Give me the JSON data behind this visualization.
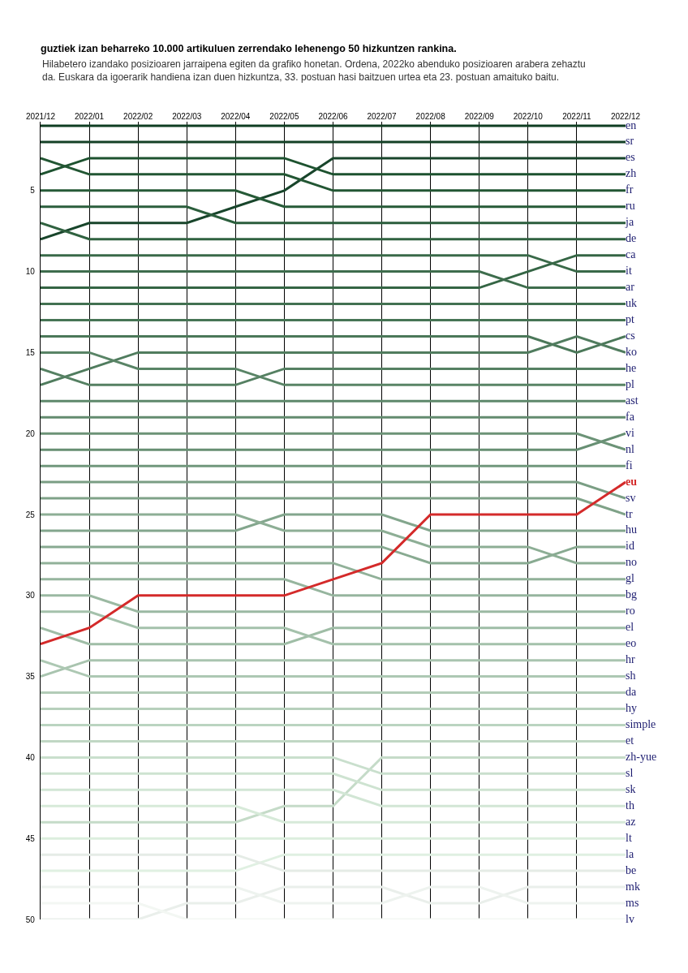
{
  "chart_data": {
    "type": "line",
    "title": "guztiek izan beharreko 10.000 artikuluen zerrendako lehenengo 50 hizkuntzen rankina.",
    "subtitle": "Hilabetero izandako posizioaren jarraipena egiten da grafiko honetan. Ordena, 2022ko abenduko posizioaren arabera zehaztu da. Euskara da igoerarik handiena izan duen hizkuntza, 33. postuan hasi baitzuen urtea eta 23. postuan amaituko baitu.",
    "categories": [
      "2021/12",
      "2022/01",
      "2022/02",
      "2022/03",
      "2022/04",
      "2022/05",
      "2022/06",
      "2022/07",
      "2022/08",
      "2022/09",
      "2022/10",
      "2022/11",
      "2022/12"
    ],
    "ylim": [
      50,
      0.75
    ],
    "yticks": [
      5,
      10,
      15,
      20,
      25,
      30,
      35,
      40,
      45,
      50
    ],
    "grid": "x",
    "legend": false,
    "line_style": "solid",
    "series": [
      {
        "name": "en",
        "color": "#0f3d22",
        "values": [
          1,
          1,
          1,
          1,
          1,
          1,
          1,
          1,
          1,
          1,
          1,
          1,
          1
        ]
      },
      {
        "name": "sr",
        "color": "#144126",
        "values": [
          2,
          2,
          2,
          2,
          2,
          2,
          2,
          2,
          2,
          2,
          2,
          2,
          2
        ]
      },
      {
        "name": "es",
        "color": "#18452b",
        "values": [
          8,
          7,
          7,
          7,
          6,
          5,
          3,
          3,
          3,
          3,
          3,
          3,
          3
        ]
      },
      {
        "name": "zh",
        "color": "#1d522f",
        "values": [
          4,
          3,
          3,
          3,
          3,
          3,
          4,
          4,
          4,
          4,
          4,
          4,
          4
        ]
      },
      {
        "name": "fr",
        "color": "#225633",
        "values": [
          3,
          4,
          4,
          4,
          4,
          4,
          5,
          5,
          5,
          5,
          5,
          5,
          5
        ]
      },
      {
        "name": "ru",
        "color": "#265a37",
        "values": [
          5,
          5,
          5,
          5,
          5,
          6,
          6,
          6,
          6,
          6,
          6,
          6,
          6
        ]
      },
      {
        "name": "ja",
        "color": "#2b5e3c",
        "values": [
          6,
          6,
          6,
          6,
          7,
          7,
          7,
          7,
          7,
          7,
          7,
          7,
          7
        ]
      },
      {
        "name": "de",
        "color": "#306240",
        "values": [
          7,
          8,
          8,
          8,
          8,
          8,
          8,
          8,
          8,
          8,
          8,
          8,
          8
        ]
      },
      {
        "name": "ca",
        "color": "#346544",
        "values": [
          11,
          11,
          11,
          11,
          11,
          11,
          11,
          11,
          11,
          11,
          10,
          9,
          9
        ]
      },
      {
        "name": "it",
        "color": "#396948",
        "values": [
          9,
          9,
          9,
          9,
          9,
          9,
          9,
          9,
          9,
          9,
          9,
          10,
          10
        ]
      },
      {
        "name": "ar",
        "color": "#3e6d4d",
        "values": [
          10,
          10,
          10,
          10,
          10,
          10,
          10,
          10,
          10,
          10,
          11,
          11,
          11
        ]
      },
      {
        "name": "uk",
        "color": "#427151",
        "values": [
          12,
          12,
          12,
          12,
          12,
          12,
          12,
          12,
          12,
          12,
          12,
          12,
          12
        ]
      },
      {
        "name": "pt",
        "color": "#477555",
        "values": [
          13,
          13,
          13,
          13,
          13,
          13,
          13,
          13,
          13,
          13,
          13,
          13,
          13
        ]
      },
      {
        "name": "cs",
        "color": "#4b7859",
        "values": [
          14,
          14,
          14,
          14,
          14,
          14,
          14,
          14,
          14,
          14,
          14,
          15,
          14
        ]
      },
      {
        "name": "ko",
        "color": "#507c5e",
        "values": [
          17,
          16,
          15,
          15,
          15,
          15,
          15,
          15,
          15,
          15,
          15,
          14,
          15
        ]
      },
      {
        "name": "he",
        "color": "#558062",
        "values": [
          16,
          17,
          17,
          17,
          17,
          16,
          16,
          16,
          16,
          16,
          16,
          16,
          16
        ]
      },
      {
        "name": "pl",
        "color": "#598466",
        "values": [
          15,
          15,
          16,
          16,
          16,
          17,
          17,
          17,
          17,
          17,
          17,
          17,
          17
        ]
      },
      {
        "name": "ast",
        "color": "#5e886b",
        "values": [
          18,
          18,
          18,
          18,
          18,
          18,
          18,
          18,
          18,
          18,
          18,
          18,
          18
        ]
      },
      {
        "name": "fa",
        "color": "#638b6f",
        "values": [
          19,
          19,
          19,
          19,
          19,
          19,
          19,
          19,
          19,
          19,
          19,
          19,
          19
        ]
      },
      {
        "name": "vi",
        "color": "#678f73",
        "values": [
          21,
          21,
          21,
          21,
          21,
          21,
          21,
          21,
          21,
          21,
          21,
          21,
          20
        ]
      },
      {
        "name": "nl",
        "color": "#6c9377",
        "values": [
          20,
          20,
          20,
          20,
          20,
          20,
          20,
          20,
          20,
          20,
          20,
          20,
          21
        ]
      },
      {
        "name": "fi",
        "color": "#71977c",
        "values": [
          22,
          22,
          22,
          22,
          22,
          22,
          22,
          22,
          22,
          22,
          22,
          22,
          22
        ]
      },
      {
        "name": "eu",
        "color": "#d42a2a",
        "values": [
          33,
          32,
          30,
          30,
          30,
          30,
          29,
          28,
          25,
          25,
          25,
          25,
          23
        ]
      },
      {
        "name": "sv",
        "color": "#7a9e84",
        "values": [
          23,
          23,
          23,
          23,
          23,
          23,
          23,
          23,
          23,
          23,
          23,
          23,
          24
        ]
      },
      {
        "name": "tr",
        "color": "#7fa288",
        "values": [
          24,
          24,
          24,
          24,
          24,
          24,
          24,
          24,
          24,
          24,
          24,
          24,
          25
        ]
      },
      {
        "name": "hu",
        "color": "#83a68d",
        "values": [
          26,
          26,
          26,
          26,
          26,
          25,
          25,
          25,
          26,
          26,
          26,
          26,
          26
        ]
      },
      {
        "name": "id",
        "color": "#88aa91",
        "values": [
          27,
          27,
          27,
          27,
          27,
          27,
          27,
          27,
          28,
          28,
          28,
          27,
          27
        ]
      },
      {
        "name": "no",
        "color": "#8dae95",
        "values": [
          25,
          25,
          25,
          25,
          25,
          26,
          26,
          26,
          27,
          27,
          27,
          28,
          28
        ]
      },
      {
        "name": "gl",
        "color": "#91b199",
        "values": [
          28,
          28,
          28,
          28,
          28,
          28,
          28,
          29,
          29,
          29,
          29,
          29,
          29
        ]
      },
      {
        "name": "bg",
        "color": "#96b59e",
        "values": [
          29,
          29,
          29,
          29,
          29,
          29,
          30,
          30,
          30,
          30,
          30,
          30,
          30
        ]
      },
      {
        "name": "ro",
        "color": "#9bb9a2",
        "values": [
          30,
          30,
          31,
          31,
          31,
          31,
          31,
          31,
          31,
          31,
          31,
          31,
          31
        ]
      },
      {
        "name": "el",
        "color": "#9fbda6",
        "values": [
          32,
          33,
          33,
          33,
          33,
          33,
          32,
          32,
          32,
          32,
          32,
          32,
          32
        ]
      },
      {
        "name": "eo",
        "color": "#a4c1ab",
        "values": [
          31,
          31,
          32,
          32,
          32,
          32,
          33,
          33,
          33,
          33,
          33,
          33,
          33
        ]
      },
      {
        "name": "hr",
        "color": "#a9c4af",
        "values": [
          35,
          34,
          34,
          34,
          34,
          34,
          34,
          34,
          34,
          34,
          34,
          34,
          34
        ]
      },
      {
        "name": "sh",
        "color": "#adc8b3",
        "values": [
          34,
          35,
          35,
          35,
          35,
          35,
          35,
          35,
          35,
          35,
          35,
          35,
          35
        ]
      },
      {
        "name": "da",
        "color": "#b2ccb7",
        "values": [
          36,
          36,
          36,
          36,
          36,
          36,
          36,
          36,
          36,
          36,
          36,
          36,
          36
        ]
      },
      {
        "name": "hy",
        "color": "#b7d0bc",
        "values": [
          37,
          37,
          37,
          37,
          37,
          37,
          37,
          37,
          37,
          37,
          37,
          37,
          37
        ]
      },
      {
        "name": "simple",
        "color": "#bbd4c0",
        "values": [
          38,
          38,
          38,
          38,
          38,
          38,
          38,
          38,
          38,
          38,
          38,
          38,
          38
        ]
      },
      {
        "name": "et",
        "color": "#c0d7c4",
        "values": [
          39,
          39,
          39,
          39,
          39,
          39,
          39,
          39,
          39,
          39,
          39,
          39,
          39
        ]
      },
      {
        "name": "zh-yue",
        "color": "#c5dbc8",
        "values": [
          44,
          44,
          44,
          44,
          44,
          43,
          43,
          40,
          40,
          40,
          40,
          40,
          40
        ]
      },
      {
        "name": "sl",
        "color": "#c9dfcd",
        "values": [
          40,
          40,
          40,
          40,
          40,
          40,
          40,
          41,
          41,
          41,
          41,
          41,
          41
        ]
      },
      {
        "name": "sk",
        "color": "#cee3d1",
        "values": [
          41,
          41,
          41,
          41,
          41,
          41,
          41,
          42,
          42,
          42,
          42,
          42,
          42
        ]
      },
      {
        "name": "th",
        "color": "#d2e6d5",
        "values": [
          42,
          42,
          42,
          42,
          42,
          42,
          42,
          43,
          43,
          43,
          43,
          43,
          43
        ]
      },
      {
        "name": "az",
        "color": "#d7ead9",
        "values": [
          43,
          43,
          43,
          43,
          43,
          44,
          44,
          44,
          44,
          44,
          44,
          44,
          44
        ]
      },
      {
        "name": "lt",
        "color": "#dceede",
        "values": [
          45,
          45,
          45,
          45,
          45,
          45,
          45,
          45,
          45,
          45,
          45,
          45,
          45
        ]
      },
      {
        "name": "la",
        "color": "#e0f0e2",
        "values": [
          47,
          47,
          47,
          47,
          47,
          46,
          46,
          46,
          46,
          46,
          46,
          46,
          46
        ]
      },
      {
        "name": "be",
        "color": "#e5ece6",
        "values": [
          46,
          46,
          46,
          46,
          46,
          47,
          47,
          47,
          47,
          47,
          47,
          47,
          47
        ]
      },
      {
        "name": "mk",
        "color": "#eaefeb",
        "values": [
          50,
          50,
          50,
          49,
          49,
          48,
          48,
          48,
          49,
          49,
          48,
          48,
          48
        ]
      },
      {
        "name": "ms",
        "color": "#eef3ef",
        "values": [
          48,
          48,
          48,
          48,
          48,
          49,
          49,
          49,
          48,
          48,
          49,
          49,
          49
        ]
      },
      {
        "name": "lv",
        "color": "#f3f7f3",
        "values": [
          49,
          49,
          49,
          50,
          50,
          50,
          50,
          50,
          50,
          50,
          50,
          50,
          50
        ]
      }
    ]
  }
}
